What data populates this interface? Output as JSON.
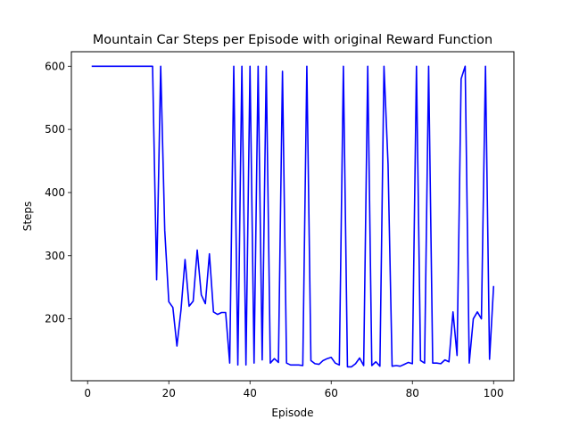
{
  "chart_data": {
    "type": "line",
    "title": "Mountain Car Steps per Episode with original Reward Function",
    "xlabel": "Episode",
    "ylabel": "Steps",
    "xlim": [
      -4,
      105
    ],
    "ylim": [
      102,
      623
    ],
    "xticks": [
      0,
      20,
      40,
      60,
      80,
      100
    ],
    "yticks": [
      200,
      300,
      400,
      500,
      600
    ],
    "grid": false,
    "legend": "none",
    "series": [
      {
        "color": "#0000ff",
        "x": [
          1,
          2,
          3,
          4,
          5,
          6,
          7,
          8,
          9,
          10,
          11,
          12,
          13,
          14,
          15,
          16,
          17,
          18,
          19,
          20,
          21,
          22,
          23,
          24,
          25,
          26,
          27,
          28,
          29,
          30,
          31,
          32,
          33,
          34,
          35,
          36,
          37,
          38,
          39,
          40,
          41,
          42,
          43,
          44,
          45,
          46,
          47,
          48,
          49,
          50,
          51,
          52,
          53,
          54,
          55,
          56,
          57,
          58,
          59,
          60,
          61,
          62,
          63,
          64,
          65,
          66,
          67,
          68,
          69,
          70,
          71,
          72,
          73,
          74,
          75,
          76,
          77,
          78,
          79,
          80,
          81,
          82,
          83,
          84,
          85,
          86,
          87,
          88,
          89,
          90,
          91,
          92,
          93,
          94,
          95,
          96,
          97,
          98,
          99,
          100
        ],
        "values": [
          600,
          600,
          600,
          600,
          600,
          600,
          600,
          600,
          600,
          600,
          600,
          600,
          600,
          600,
          600,
          600,
          262,
          600,
          340,
          227,
          218,
          157,
          214,
          294,
          220,
          228,
          309,
          238,
          224,
          303,
          211,
          207,
          210,
          210,
          130,
          600,
          127,
          600,
          127,
          600,
          130,
          600,
          135,
          600,
          130,
          137,
          131,
          592,
          130,
          127,
          127,
          127,
          126,
          600,
          134,
          129,
          128,
          134,
          137,
          139,
          130,
          127,
          600,
          124,
          124,
          129,
          138,
          126,
          600,
          126,
          132,
          125,
          600,
          445,
          125,
          126,
          125,
          128,
          131,
          129,
          600,
          134,
          130,
          600,
          130,
          130,
          129,
          135,
          132,
          211,
          142,
          580,
          600,
          130,
          200,
          211,
          200,
          600,
          136,
          252
        ]
      }
    ]
  }
}
